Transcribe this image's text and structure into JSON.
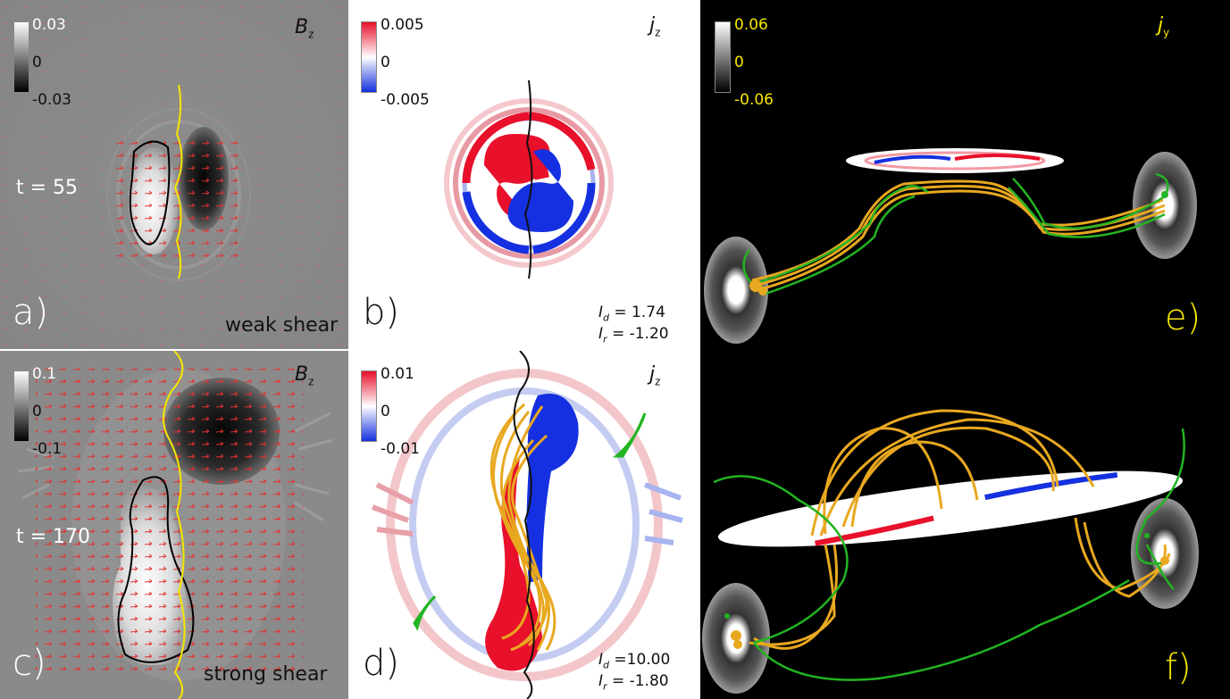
{
  "panels": {
    "a": {
      "letter": "a)",
      "field": "B",
      "field_sub": "z",
      "time": "t = 55",
      "note": "weak shear",
      "cbar": {
        "max": "0.03",
        "mid": "0",
        "min": "-0.03"
      }
    },
    "b": {
      "letter": "b)",
      "field": "j",
      "field_sub": "z",
      "cbar": {
        "max": "0.005",
        "mid": "0",
        "min": "-0.005"
      },
      "Id_label": "I",
      "Id_sub": "d",
      "Id_val": "=  1.74",
      "Ir_label": "I",
      "Ir_sub": "r",
      "Ir_val": "= -1.20"
    },
    "c": {
      "letter": "c)",
      "field": "B",
      "field_sub": "z",
      "time": "t = 170",
      "note": "strong shear",
      "cbar": {
        "max": "0.1",
        "mid": "0",
        "min": "-0.1"
      }
    },
    "d": {
      "letter": "d)",
      "field": "j",
      "field_sub": "z",
      "cbar": {
        "max": "0.01",
        "mid": "0",
        "min": "-0.01"
      },
      "Id_label": "I",
      "Id_sub": "d",
      "Id_val": "=10.00",
      "Ir_label": "I",
      "Ir_sub": "r",
      "Ir_val": "= -1.80"
    },
    "e": {
      "letter": "e)",
      "field": "j",
      "field_sub": "y",
      "cbar": {
        "max": "0.06",
        "mid": "0",
        "min": "-0.06"
      }
    },
    "f": {
      "letter": "f)"
    }
  },
  "colors": {
    "field_lines": "#e8a820",
    "green_lines": "#22b422",
    "pil": "#f5e600",
    "label_yellow": "#f5e600",
    "red": "#e8102a",
    "blue": "#1530e0"
  }
}
